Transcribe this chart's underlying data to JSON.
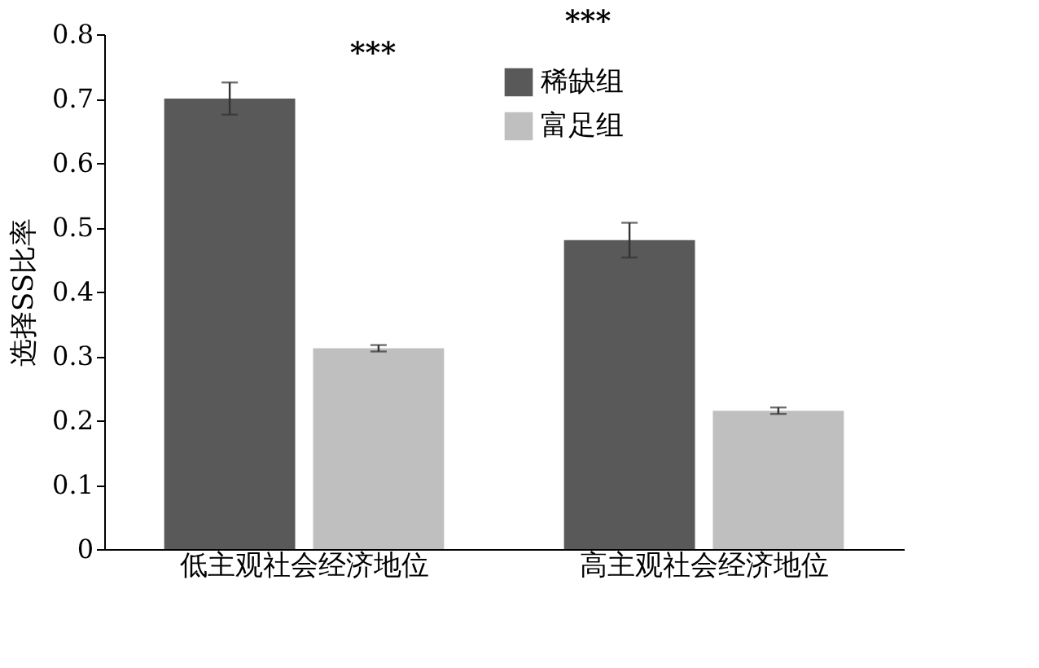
{
  "chart_data": {
    "type": "bar",
    "ylabel": "选择SS比率",
    "categories": [
      "低主观社会经济地位",
      "高主观社会经济地位"
    ],
    "series": [
      {
        "name": "稀缺组",
        "color": "#595959",
        "values": [
          0.7,
          0.48
        ],
        "errors": [
          0.025,
          0.027
        ]
      },
      {
        "name": "富足组",
        "color": "#bfbfbf",
        "values": [
          0.312,
          0.215
        ],
        "errors": [
          0.005,
          0.005
        ]
      }
    ],
    "ylim": [
      0,
      0.8
    ],
    "yticks": [
      0,
      0.1,
      0.2,
      0.3,
      0.4,
      0.5,
      0.6,
      0.7,
      0.8
    ],
    "grid": false,
    "legend": "top",
    "annotations": [
      "***",
      "***"
    ]
  }
}
